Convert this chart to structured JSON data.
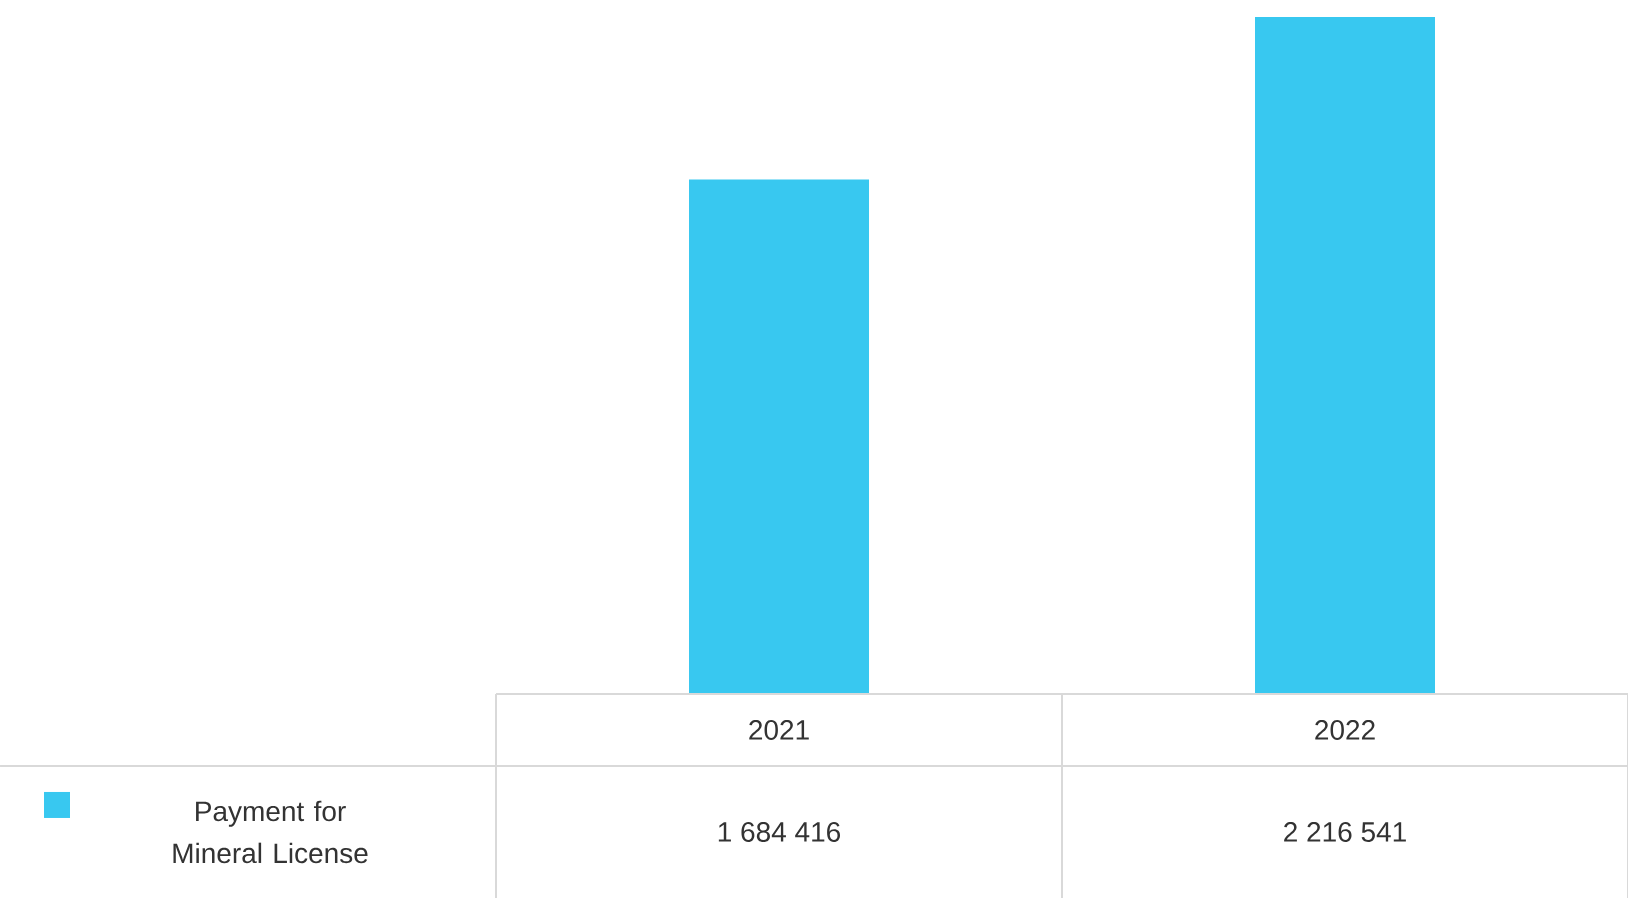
{
  "chart_data": {
    "type": "bar",
    "categories": [
      "2021",
      "2022"
    ],
    "series": [
      {
        "name": "Payment for Mineral License",
        "color": "#38c8f0",
        "values": [
          1684416,
          2216541
        ],
        "value_labels": [
          "1 684 416",
          "2 216 541"
        ]
      }
    ],
    "legend": "bottom left"
  }
}
